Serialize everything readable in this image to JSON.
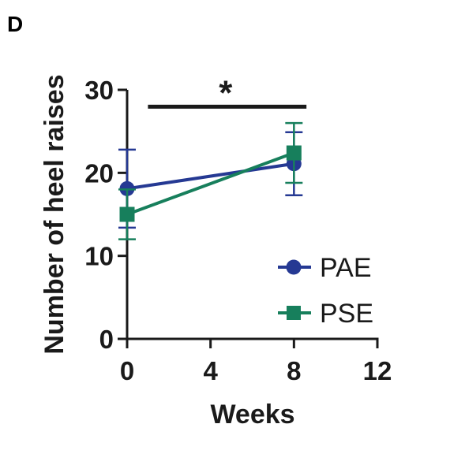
{
  "panel_label": "D",
  "chart_data": {
    "type": "line",
    "title": "",
    "xlabel": "Weeks",
    "ylabel": "Number of heel raises",
    "xlim": [
      0,
      12
    ],
    "ylim": [
      0,
      30
    ],
    "xticks": [
      0,
      4,
      8,
      12
    ],
    "yticks": [
      0,
      10,
      20,
      30
    ],
    "grid": false,
    "legend_position": "bottom-right",
    "series": [
      {
        "name": "PAE",
        "marker": "circle",
        "color": "#253993",
        "x": [
          0,
          8
        ],
        "y": [
          18.1,
          21.1
        ],
        "error": [
          4.7,
          3.8
        ]
      },
      {
        "name": "PSE",
        "marker": "square",
        "color": "#177f5c",
        "x": [
          0,
          8
        ],
        "y": [
          15.0,
          22.4
        ],
        "error": [
          3.0,
          3.6
        ]
      }
    ],
    "annotations": [
      {
        "text": "*",
        "type": "significance-bracket",
        "x_from": 1,
        "x_to": 8.6,
        "y": 27.5
      }
    ]
  }
}
